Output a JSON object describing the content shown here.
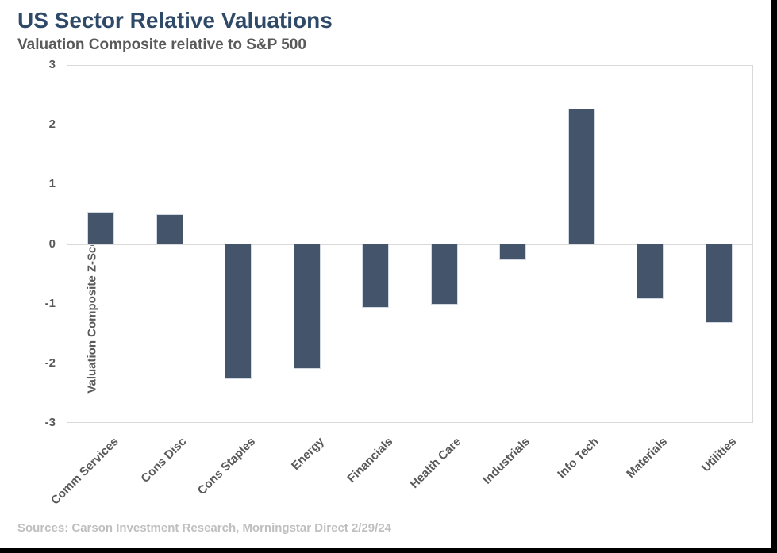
{
  "header": {
    "title": "US Sector Relative Valuations",
    "subtitle": "Valuation Composite relative to S&P 500"
  },
  "footer": {
    "sources": "Sources: Carson Investment Research, Morningstar Direct 2/29/24"
  },
  "colors": {
    "bar": "#44546A",
    "title_text": "#2F4A68",
    "subtitle_text": "#595959",
    "axis_text": "#595959",
    "footer_text": "#BFBFBF",
    "plot_border": "#D9D9D9",
    "zero_line": "#D9D9D9"
  },
  "chart_data": {
    "type": "bar",
    "title": "US Sector Relative Valuations",
    "subtitle": "Valuation Composite relative to S&P 500",
    "categories": [
      "Comm Services",
      "Cons Disc",
      "Cons Staples",
      "Energy",
      "Financials",
      "Health Care",
      "Industrials",
      "Info Tech",
      "Materials",
      "Utilities"
    ],
    "values": [
      0.52,
      0.48,
      -2.25,
      -2.08,
      -1.05,
      -1.0,
      -0.25,
      2.25,
      -0.9,
      -1.3
    ],
    "xlabel": "",
    "ylabel": "Valuation Composite Z-Score",
    "ylim": [
      -3,
      3
    ],
    "yticks": [
      3,
      2,
      1,
      0,
      -1,
      -2,
      -3
    ],
    "grid": "zero-line-only",
    "legend": "none",
    "bar_color": "#44546A",
    "x_tick_rotation_deg": 45
  }
}
